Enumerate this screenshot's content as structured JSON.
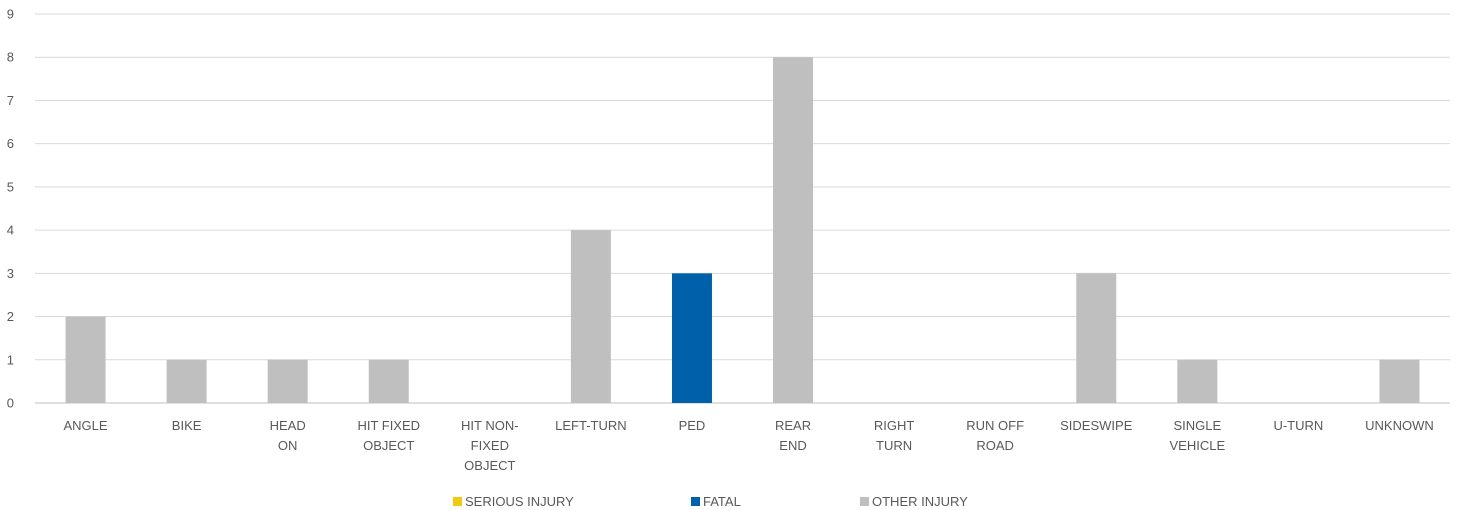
{
  "chart_data": {
    "type": "bar",
    "stacked": true,
    "title": "",
    "xlabel": "",
    "ylabel": "",
    "ylim": [
      0,
      9
    ],
    "yticks": [
      0,
      1,
      2,
      3,
      4,
      5,
      6,
      7,
      8,
      9
    ],
    "grid": true,
    "legend_position": "bottom",
    "categories": [
      [
        "ANGLE"
      ],
      [
        "BIKE"
      ],
      [
        "HEAD",
        "ON"
      ],
      [
        "HIT FIXED",
        "OBJECT"
      ],
      [
        "HIT NON-",
        "FIXED",
        "OBJECT"
      ],
      [
        "LEFT-TURN"
      ],
      [
        "PED"
      ],
      [
        "REAR",
        "END"
      ],
      [
        "RIGHT",
        "TURN"
      ],
      [
        "RUN OFF",
        "ROAD"
      ],
      [
        "SIDESWIPE"
      ],
      [
        "SINGLE",
        "VEHICLE"
      ],
      [
        "U-TURN"
      ],
      [
        "UNKNOWN"
      ]
    ],
    "series": [
      {
        "name": "SERIOUS INJURY",
        "color": "#F2C811",
        "values": [
          0,
          0,
          0,
          0,
          0,
          0,
          0,
          0,
          0,
          0,
          0,
          0,
          0,
          0
        ]
      },
      {
        "name": "FATAL",
        "color": "#0060A9",
        "values": [
          0,
          0,
          0,
          0,
          0,
          0,
          3,
          0,
          0,
          0,
          0,
          0,
          0,
          0
        ]
      },
      {
        "name": "OTHER INJURY",
        "color": "#BFBFBF",
        "values": [
          2,
          1,
          1,
          1,
          0,
          4,
          0,
          8,
          0,
          0,
          3,
          1,
          0,
          1
        ]
      }
    ]
  }
}
